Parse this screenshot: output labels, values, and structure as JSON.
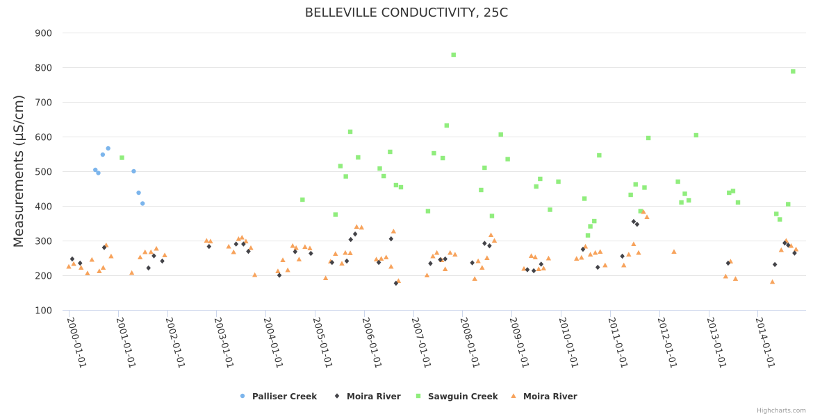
{
  "chart_data": {
    "type": "scatter",
    "title": "BELLEVILLE CONDUCTIVITY, 25C",
    "ylabel": "Measurements (µS/cm)",
    "xlabel": "",
    "ylim": [
      100,
      900
    ],
    "yticks": [
      100,
      200,
      300,
      400,
      500,
      600,
      700,
      800,
      900
    ],
    "xlim": [
      2000.0,
      2014.8
    ],
    "x_tick_values": [
      2000,
      2001,
      2002,
      2003,
      2004,
      2005,
      2006,
      2007,
      2008,
      2009,
      2010,
      2011,
      2012,
      2013,
      2014
    ],
    "x_tick_labels": [
      "2000-01-01",
      "2001-01-01",
      "2002-01-01",
      "2003-01-01",
      "2004-01-01",
      "2005-01-01",
      "2006-01-01",
      "2007-01-01",
      "2008-01-01",
      "2009-01-01",
      "2010-01-01",
      "2011-01-01",
      "2012-01-01",
      "2013-01-01",
      "2014-01-01"
    ],
    "grid": true,
    "legend_position": "bottom-center",
    "series": [
      {
        "name": "Palliser Creek",
        "symbol": "circle",
        "color": "#7cb5ec",
        "points": [
          [
            2000.54,
            504
          ],
          [
            2000.6,
            495
          ],
          [
            2000.69,
            548
          ],
          [
            2000.8,
            566
          ],
          [
            2001.32,
            500
          ],
          [
            2001.42,
            438
          ],
          [
            2001.5,
            407
          ]
        ]
      },
      {
        "name": "Moira River",
        "symbol": "diamond",
        "color": "#434348",
        "points": [
          [
            2000.07,
            247
          ],
          [
            2000.23,
            235
          ],
          [
            2000.72,
            280
          ],
          [
            2001.62,
            221
          ],
          [
            2001.73,
            256
          ],
          [
            2001.9,
            241
          ],
          [
            2002.85,
            283
          ],
          [
            2003.4,
            290
          ],
          [
            2003.55,
            290
          ],
          [
            2003.65,
            269
          ],
          [
            2004.28,
            200
          ],
          [
            2004.6,
            268
          ],
          [
            2004.92,
            263
          ],
          [
            2005.35,
            237
          ],
          [
            2005.65,
            241
          ],
          [
            2005.73,
            303
          ],
          [
            2005.82,
            319
          ],
          [
            2006.3,
            237
          ],
          [
            2006.55,
            305
          ],
          [
            2006.65,
            177
          ],
          [
            2007.35,
            234
          ],
          [
            2007.55,
            245
          ],
          [
            2007.65,
            247
          ],
          [
            2008.2,
            236
          ],
          [
            2008.45,
            292
          ],
          [
            2008.55,
            285
          ],
          [
            2009.32,
            216
          ],
          [
            2009.45,
            213
          ],
          [
            2009.6,
            232
          ],
          [
            2010.45,
            275
          ],
          [
            2010.75,
            223
          ],
          [
            2011.25,
            255
          ],
          [
            2011.48,
            355
          ],
          [
            2011.55,
            347
          ],
          [
            2013.4,
            235
          ],
          [
            2014.35,
            231
          ],
          [
            2014.55,
            293
          ],
          [
            2014.62,
            287
          ],
          [
            2014.75,
            264
          ]
        ]
      },
      {
        "name": "Sawguin Creek",
        "symbol": "square",
        "color": "#90ed7d",
        "points": [
          [
            2001.08,
            539
          ],
          [
            2004.75,
            418
          ],
          [
            2005.42,
            375
          ],
          [
            2005.52,
            515
          ],
          [
            2005.63,
            485
          ],
          [
            2005.72,
            614
          ],
          [
            2005.88,
            540
          ],
          [
            2006.32,
            508
          ],
          [
            2006.4,
            486
          ],
          [
            2006.53,
            556
          ],
          [
            2006.65,
            460
          ],
          [
            2006.75,
            454
          ],
          [
            2007.3,
            385
          ],
          [
            2007.42,
            552
          ],
          [
            2007.6,
            538
          ],
          [
            2007.68,
            632
          ],
          [
            2007.82,
            836
          ],
          [
            2008.38,
            446
          ],
          [
            2008.45,
            510
          ],
          [
            2008.6,
            371
          ],
          [
            2008.78,
            606
          ],
          [
            2008.92,
            535
          ],
          [
            2009.5,
            456
          ],
          [
            2009.58,
            478
          ],
          [
            2009.78,
            389
          ],
          [
            2009.95,
            470
          ],
          [
            2010.48,
            421
          ],
          [
            2010.55,
            315
          ],
          [
            2010.6,
            341
          ],
          [
            2010.68,
            356
          ],
          [
            2010.78,
            546
          ],
          [
            2011.42,
            432
          ],
          [
            2011.52,
            462
          ],
          [
            2011.62,
            385
          ],
          [
            2011.7,
            453
          ],
          [
            2011.78,
            596
          ],
          [
            2012.38,
            470
          ],
          [
            2012.45,
            410
          ],
          [
            2012.52,
            435
          ],
          [
            2012.6,
            416
          ],
          [
            2012.75,
            604
          ],
          [
            2013.42,
            438
          ],
          [
            2013.5,
            443
          ],
          [
            2013.6,
            410
          ],
          [
            2014.38,
            377
          ],
          [
            2014.45,
            361
          ],
          [
            2014.62,
            405
          ],
          [
            2014.72,
            788
          ]
        ]
      },
      {
        "name": "Moira River",
        "symbol": "triangle",
        "color": "#f7a35c",
        "points": [
          [
            2000.0,
            225
          ],
          [
            2000.1,
            233
          ],
          [
            2000.25,
            222
          ],
          [
            2000.38,
            206
          ],
          [
            2000.47,
            245
          ],
          [
            2000.62,
            212
          ],
          [
            2000.7,
            222
          ],
          [
            2000.76,
            287
          ],
          [
            2000.86,
            255
          ],
          [
            2001.28,
            207
          ],
          [
            2001.45,
            252
          ],
          [
            2001.55,
            267
          ],
          [
            2001.67,
            267
          ],
          [
            2001.78,
            277
          ],
          [
            2001.95,
            258
          ],
          [
            2002.8,
            300
          ],
          [
            2002.88,
            298
          ],
          [
            2003.25,
            283
          ],
          [
            2003.35,
            267
          ],
          [
            2003.45,
            305
          ],
          [
            2003.52,
            309
          ],
          [
            2003.6,
            298
          ],
          [
            2003.7,
            279
          ],
          [
            2003.78,
            201
          ],
          [
            2004.25,
            212
          ],
          [
            2004.35,
            244
          ],
          [
            2004.45,
            215
          ],
          [
            2004.55,
            285
          ],
          [
            2004.62,
            279
          ],
          [
            2004.68,
            246
          ],
          [
            2004.8,
            282
          ],
          [
            2004.9,
            278
          ],
          [
            2005.22,
            192
          ],
          [
            2005.32,
            240
          ],
          [
            2005.42,
            262
          ],
          [
            2005.55,
            234
          ],
          [
            2005.62,
            265
          ],
          [
            2005.72,
            264
          ],
          [
            2005.85,
            340
          ],
          [
            2005.95,
            338
          ],
          [
            2006.25,
            246
          ],
          [
            2006.35,
            248
          ],
          [
            2006.45,
            252
          ],
          [
            2006.55,
            225
          ],
          [
            2006.6,
            327
          ],
          [
            2006.7,
            184
          ],
          [
            2007.28,
            200
          ],
          [
            2007.4,
            255
          ],
          [
            2007.48,
            265
          ],
          [
            2007.58,
            244
          ],
          [
            2007.65,
            218
          ],
          [
            2007.75,
            265
          ],
          [
            2007.85,
            260
          ],
          [
            2008.25,
            190
          ],
          [
            2008.32,
            241
          ],
          [
            2008.4,
            222
          ],
          [
            2008.5,
            250
          ],
          [
            2008.58,
            316
          ],
          [
            2008.65,
            300
          ],
          [
            2009.25,
            219
          ],
          [
            2009.4,
            256
          ],
          [
            2009.48,
            252
          ],
          [
            2009.55,
            218
          ],
          [
            2009.65,
            220
          ],
          [
            2009.75,
            249
          ],
          [
            2010.32,
            248
          ],
          [
            2010.42,
            251
          ],
          [
            2010.5,
            283
          ],
          [
            2010.6,
            260
          ],
          [
            2010.7,
            265
          ],
          [
            2010.8,
            268
          ],
          [
            2010.9,
            229
          ],
          [
            2011.28,
            229
          ],
          [
            2011.38,
            260
          ],
          [
            2011.48,
            290
          ],
          [
            2011.58,
            265
          ],
          [
            2011.68,
            383
          ],
          [
            2011.75,
            368
          ],
          [
            2012.3,
            268
          ],
          [
            2013.35,
            197
          ],
          [
            2013.45,
            240
          ],
          [
            2013.55,
            190
          ],
          [
            2014.3,
            181
          ],
          [
            2014.48,
            273
          ],
          [
            2014.58,
            300
          ],
          [
            2014.68,
            285
          ],
          [
            2014.78,
            275
          ]
        ]
      }
    ]
  },
  "credits": "Highcharts.com"
}
